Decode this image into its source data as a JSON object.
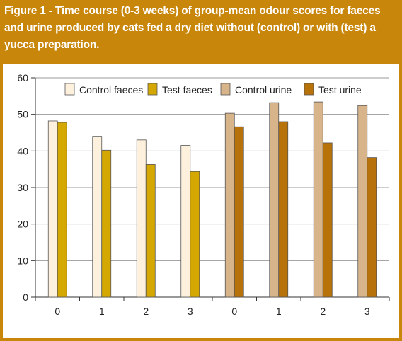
{
  "caption": "Figure 1 - Time course (0-3 weeks) of group-mean odour scores for faeces and urine produced by cats fed a dry diet without (control) or with (test) a yucca preparation.",
  "colors": {
    "frame": "#c8860a",
    "control_faeces": "#fdf0dc",
    "test_faeces": "#d4a800",
    "control_urine": "#d7b48a",
    "test_urine": "#b8720a"
  },
  "chart_data": {
    "type": "bar",
    "categories": [
      "0",
      "1",
      "2",
      "3",
      "0",
      "1",
      "2",
      "3"
    ],
    "ylim": [
      0,
      60
    ],
    "yticks": [
      0,
      10,
      20,
      30,
      40,
      50,
      60
    ],
    "grid": true,
    "legend": "top",
    "series": [
      {
        "name": "Control faeces",
        "values": [
          48.2,
          44.0,
          43.0,
          41.5,
          null,
          null,
          null,
          null
        ]
      },
      {
        "name": "Test faeces",
        "values": [
          47.8,
          40.2,
          36.3,
          34.4,
          null,
          null,
          null,
          null
        ]
      },
      {
        "name": "Control urine",
        "values": [
          null,
          null,
          null,
          null,
          50.3,
          53.2,
          53.4,
          52.4
        ]
      },
      {
        "name": "Test urine",
        "values": [
          null,
          null,
          null,
          null,
          46.6,
          48.0,
          42.2,
          38.2
        ]
      }
    ]
  }
}
